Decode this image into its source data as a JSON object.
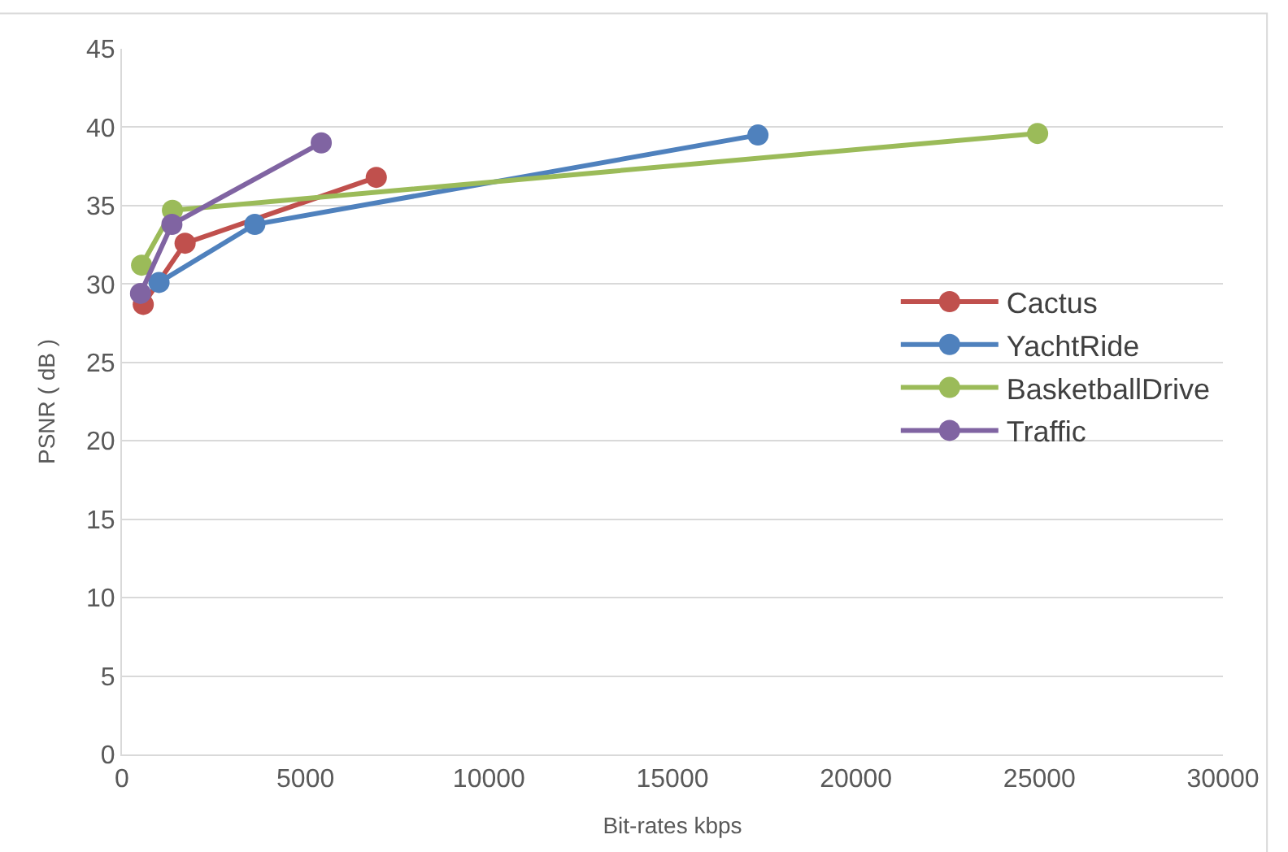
{
  "chart_data": {
    "type": "line",
    "xlabel": "Bit-rates kbps",
    "ylabel": "PSNR ( dB )",
    "xlim": [
      0,
      30000
    ],
    "xticks": [
      0,
      5000,
      10000,
      15000,
      20000,
      25000,
      30000
    ],
    "ylim": [
      0,
      45
    ],
    "yticks": [
      0,
      5,
      10,
      15,
      20,
      25,
      30,
      35,
      40,
      45
    ],
    "grid": "y",
    "legend": "right",
    "marker": "circle",
    "line_style": "solid",
    "series": [
      {
        "name": "Cactus",
        "color": "#c0504d",
        "x": [
          580,
          1720,
          6930
        ],
        "values": [
          28.7,
          32.6,
          36.8
        ]
      },
      {
        "name": "YachtRide",
        "color": "#4f81bd",
        "x": [
          1010,
          3620,
          17330
        ],
        "values": [
          30.1,
          33.8,
          39.5
        ]
      },
      {
        "name": "BasketballDrive",
        "color": "#9bbb59",
        "x": [
          535,
          1375,
          24950
        ],
        "values": [
          31.2,
          34.7,
          39.6
        ]
      },
      {
        "name": "Traffic",
        "color": "#8064a2",
        "x": [
          505,
          1360,
          5430
        ],
        "values": [
          29.4,
          33.8,
          39.0
        ]
      }
    ]
  }
}
